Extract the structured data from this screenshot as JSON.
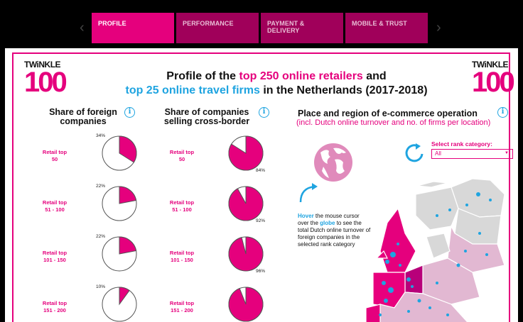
{
  "tabs": [
    {
      "label": "PROFILE",
      "active": true
    },
    {
      "label": "PERFORMANCE",
      "active": false
    },
    {
      "label": "PAYMENT & DELIVERY",
      "active": false
    },
    {
      "label": "MOBILE & TRUST",
      "active": false
    }
  ],
  "logo": {
    "top": "TWiNKLE",
    "num": "100"
  },
  "title": {
    "line1_pre": "Profile of the ",
    "line1_hl": "top 250 online retailers",
    "line1_post": " and",
    "line2_hl": "top 25 online travel firms",
    "line2_post": " in the Netherlands (2017-2018)"
  },
  "sections": {
    "foreign": {
      "title_l1": "Share of foreign",
      "title_l2": "companies"
    },
    "crossborder": {
      "title_l1": "Share of companies",
      "title_l2": "selling cross-border"
    },
    "place": {
      "title": "Place and region of e-commerce operation",
      "subtitle": "(incl. Dutch online turnover and no. of firms per location)"
    }
  },
  "info_icon": "i",
  "rows": [
    {
      "label_l1": "Retail top",
      "label_l2": "50",
      "foreign": 34,
      "cross": 84,
      "foreign_label": "34%",
      "cross_label": "84%"
    },
    {
      "label_l1": "Retail top",
      "label_l2": "51 - 100",
      "foreign": 22,
      "cross": 92,
      "foreign_label": "22%",
      "cross_label": "92%"
    },
    {
      "label_l1": "Retail top",
      "label_l2": "101 - 150",
      "foreign": 22,
      "cross": 96,
      "foreign_label": "22%",
      "cross_label": "96%"
    },
    {
      "label_l1": "Retail top",
      "label_l2": "151 - 200",
      "foreign": 10,
      "cross": 94,
      "foreign_label": "10%",
      "cross_label": ""
    }
  ],
  "rank": {
    "label": "Select rank category:",
    "selected": "All"
  },
  "hover": {
    "w1": "Hover",
    "t1": " the mouse cursor over the ",
    "w2": "globe",
    "t2": " to see the total Dutch online turnover of foreign companies in the selected rank category"
  },
  "colors": {
    "pink": "#e5007d",
    "blue": "#1fa4e0",
    "tab_dark": "#a0005a"
  }
}
